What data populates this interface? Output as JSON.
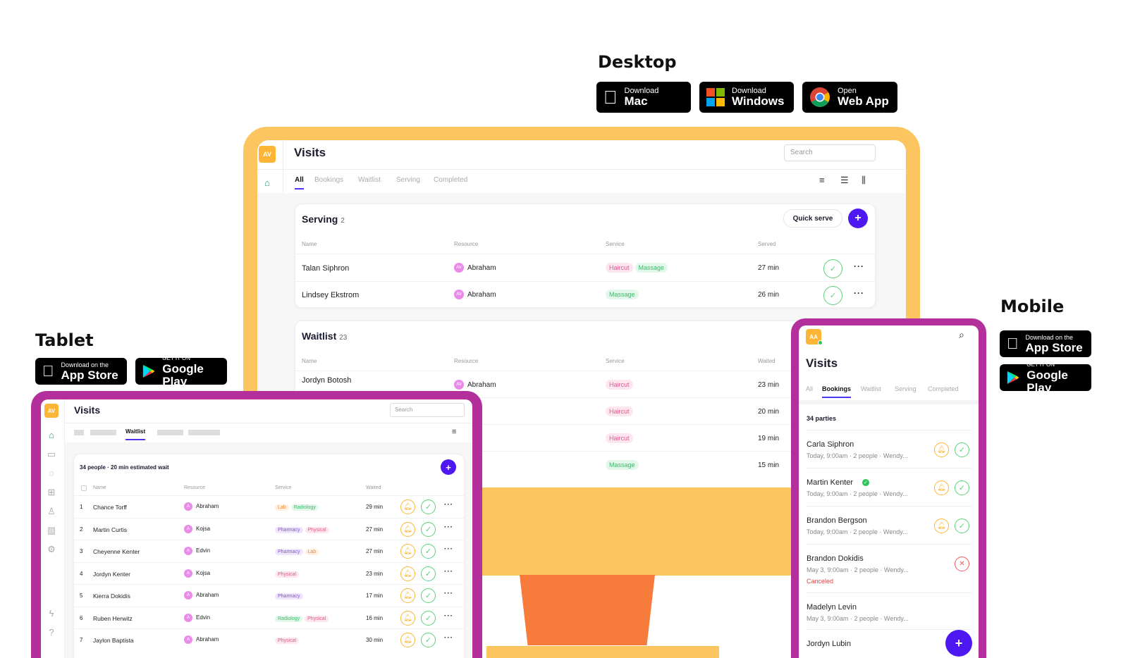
{
  "headings": {
    "desktop": "Desktop",
    "tablet": "Tablet",
    "mobile": "Mobile"
  },
  "desktop_badges": [
    {
      "line1": "Download",
      "line2": "Mac",
      "icon": "apple-icon"
    },
    {
      "line1": "Download",
      "line2": "Windows",
      "icon": "windows-icon"
    },
    {
      "line1": "Open",
      "line2": "Web App",
      "icon": "chrome-icon"
    }
  ],
  "store_badges": {
    "appstore": {
      "line1": "Download on the",
      "line2": "App Store"
    },
    "googleplay": {
      "line1": "GET IT ON",
      "line2": "Google Play"
    }
  },
  "desktop_app": {
    "avatar": "AV",
    "title": "Visits",
    "search_placeholder": "Search",
    "tabs": [
      "All",
      "Bookings",
      "Waitlist",
      "Serving",
      "Completed"
    ],
    "serving": {
      "title": "Serving",
      "count": "2",
      "quick_serve": "Quick serve",
      "columns": [
        "Name",
        "Resource",
        "Service",
        "Served"
      ],
      "rows": [
        {
          "name": "Talan Siphron",
          "resource": "Abraham",
          "services": [
            "Haircut",
            "Massage"
          ],
          "time": "27 min"
        },
        {
          "name": "Lindsey Ekstrom",
          "resource": "Abraham",
          "services": [
            "Massage"
          ],
          "time": "26 min"
        }
      ]
    },
    "waitlist": {
      "title": "Waitlist",
      "count": "23",
      "columns": [
        "Name",
        "Resource",
        "Service",
        "Waited"
      ],
      "rows": [
        {
          "name": "Jordyn Botosh",
          "resource": "Abraham",
          "services": [
            "Haircut"
          ],
          "time": "23 min"
        },
        {
          "name": "",
          "resource": "aham",
          "services": [
            "Haircut"
          ],
          "time": "20 min"
        },
        {
          "name": "",
          "resource": "ilable",
          "services": [
            "Haircut"
          ],
          "time": "19 min"
        },
        {
          "name": "",
          "resource": "aham",
          "services": [
            "Massage"
          ],
          "time": "15 min"
        }
      ]
    }
  },
  "tablet_app": {
    "avatar": "AV",
    "title": "Visits",
    "search_placeholder": "Search",
    "active_tab": "Waitlist",
    "summary": "34 people · 20 min estimated wait",
    "columns": [
      "Name",
      "Resource",
      "Service",
      "Waited"
    ],
    "rows": [
      {
        "num": "1",
        "name": "Chance Torff",
        "resource": "Abraham",
        "services": [
          [
            "Lab",
            "orange"
          ],
          [
            "Radiology",
            "green"
          ]
        ],
        "time": "29 min"
      },
      {
        "num": "2",
        "name": "Martin Curtis",
        "resource": "Kojsa",
        "services": [
          [
            "Pharmacy",
            "purple"
          ],
          [
            "Physical",
            "pink"
          ]
        ],
        "time": "27 min"
      },
      {
        "num": "3",
        "name": "Cheyenne Kenter",
        "resource": "Edvin",
        "services": [
          [
            "Pharmacy",
            "purple"
          ],
          [
            "Lab",
            "orange"
          ]
        ],
        "time": "27 min"
      },
      {
        "num": "4",
        "name": "Jordyn Kenter",
        "resource": "Kojsa",
        "services": [
          [
            "Physical",
            "pink"
          ]
        ],
        "time": "23 min"
      },
      {
        "num": "5",
        "name": "Kierra Dokidis",
        "resource": "Abraham",
        "services": [
          [
            "Pharmacy",
            "purple"
          ]
        ],
        "time": "17 min"
      },
      {
        "num": "6",
        "name": "Ruben Herwitz",
        "resource": "Edvin",
        "services": [
          [
            "Radiology",
            "green"
          ],
          [
            "Physical",
            "pink"
          ]
        ],
        "time": "16 min"
      },
      {
        "num": "7",
        "name": "Jaylon Baptista",
        "resource": "Abraham",
        "services": [
          [
            "Physical",
            "pink"
          ]
        ],
        "time": "30 min"
      }
    ]
  },
  "mobile_app": {
    "avatar": "AA",
    "title": "Visits",
    "tabs": [
      "All",
      "Bookings",
      "Waitlist",
      "Serving",
      "Completed"
    ],
    "summary": "34 parties",
    "items": [
      {
        "name": "Carla Siphron",
        "detail": "Today, 9:00am · 2 people · Wendy...",
        "state": "active"
      },
      {
        "name": "Martin Kenter",
        "detail": "Today, 9:00am · 2 people · Wendy...",
        "state": "active",
        "verified": true
      },
      {
        "name": "Brandon Bergson",
        "detail": "Today, 9:00am · 2 people · Wendy...",
        "state": "active"
      },
      {
        "name": "Brandon Dokidis",
        "detail": "May 3, 9:00am · 2 people · Wendy...",
        "state": "canceled",
        "status": "Canceled"
      },
      {
        "name": "Madelyn Levin",
        "detail": "May 3, 9:00am · 2 people · Wendy...",
        "state": "none"
      },
      {
        "name": "Jordyn Lubin",
        "detail": "",
        "state": "none"
      }
    ]
  },
  "colors": {
    "accent": "#4d18f2",
    "monitor": "#fcc560",
    "device": "#b3309c",
    "stand": "#f77b3a"
  }
}
